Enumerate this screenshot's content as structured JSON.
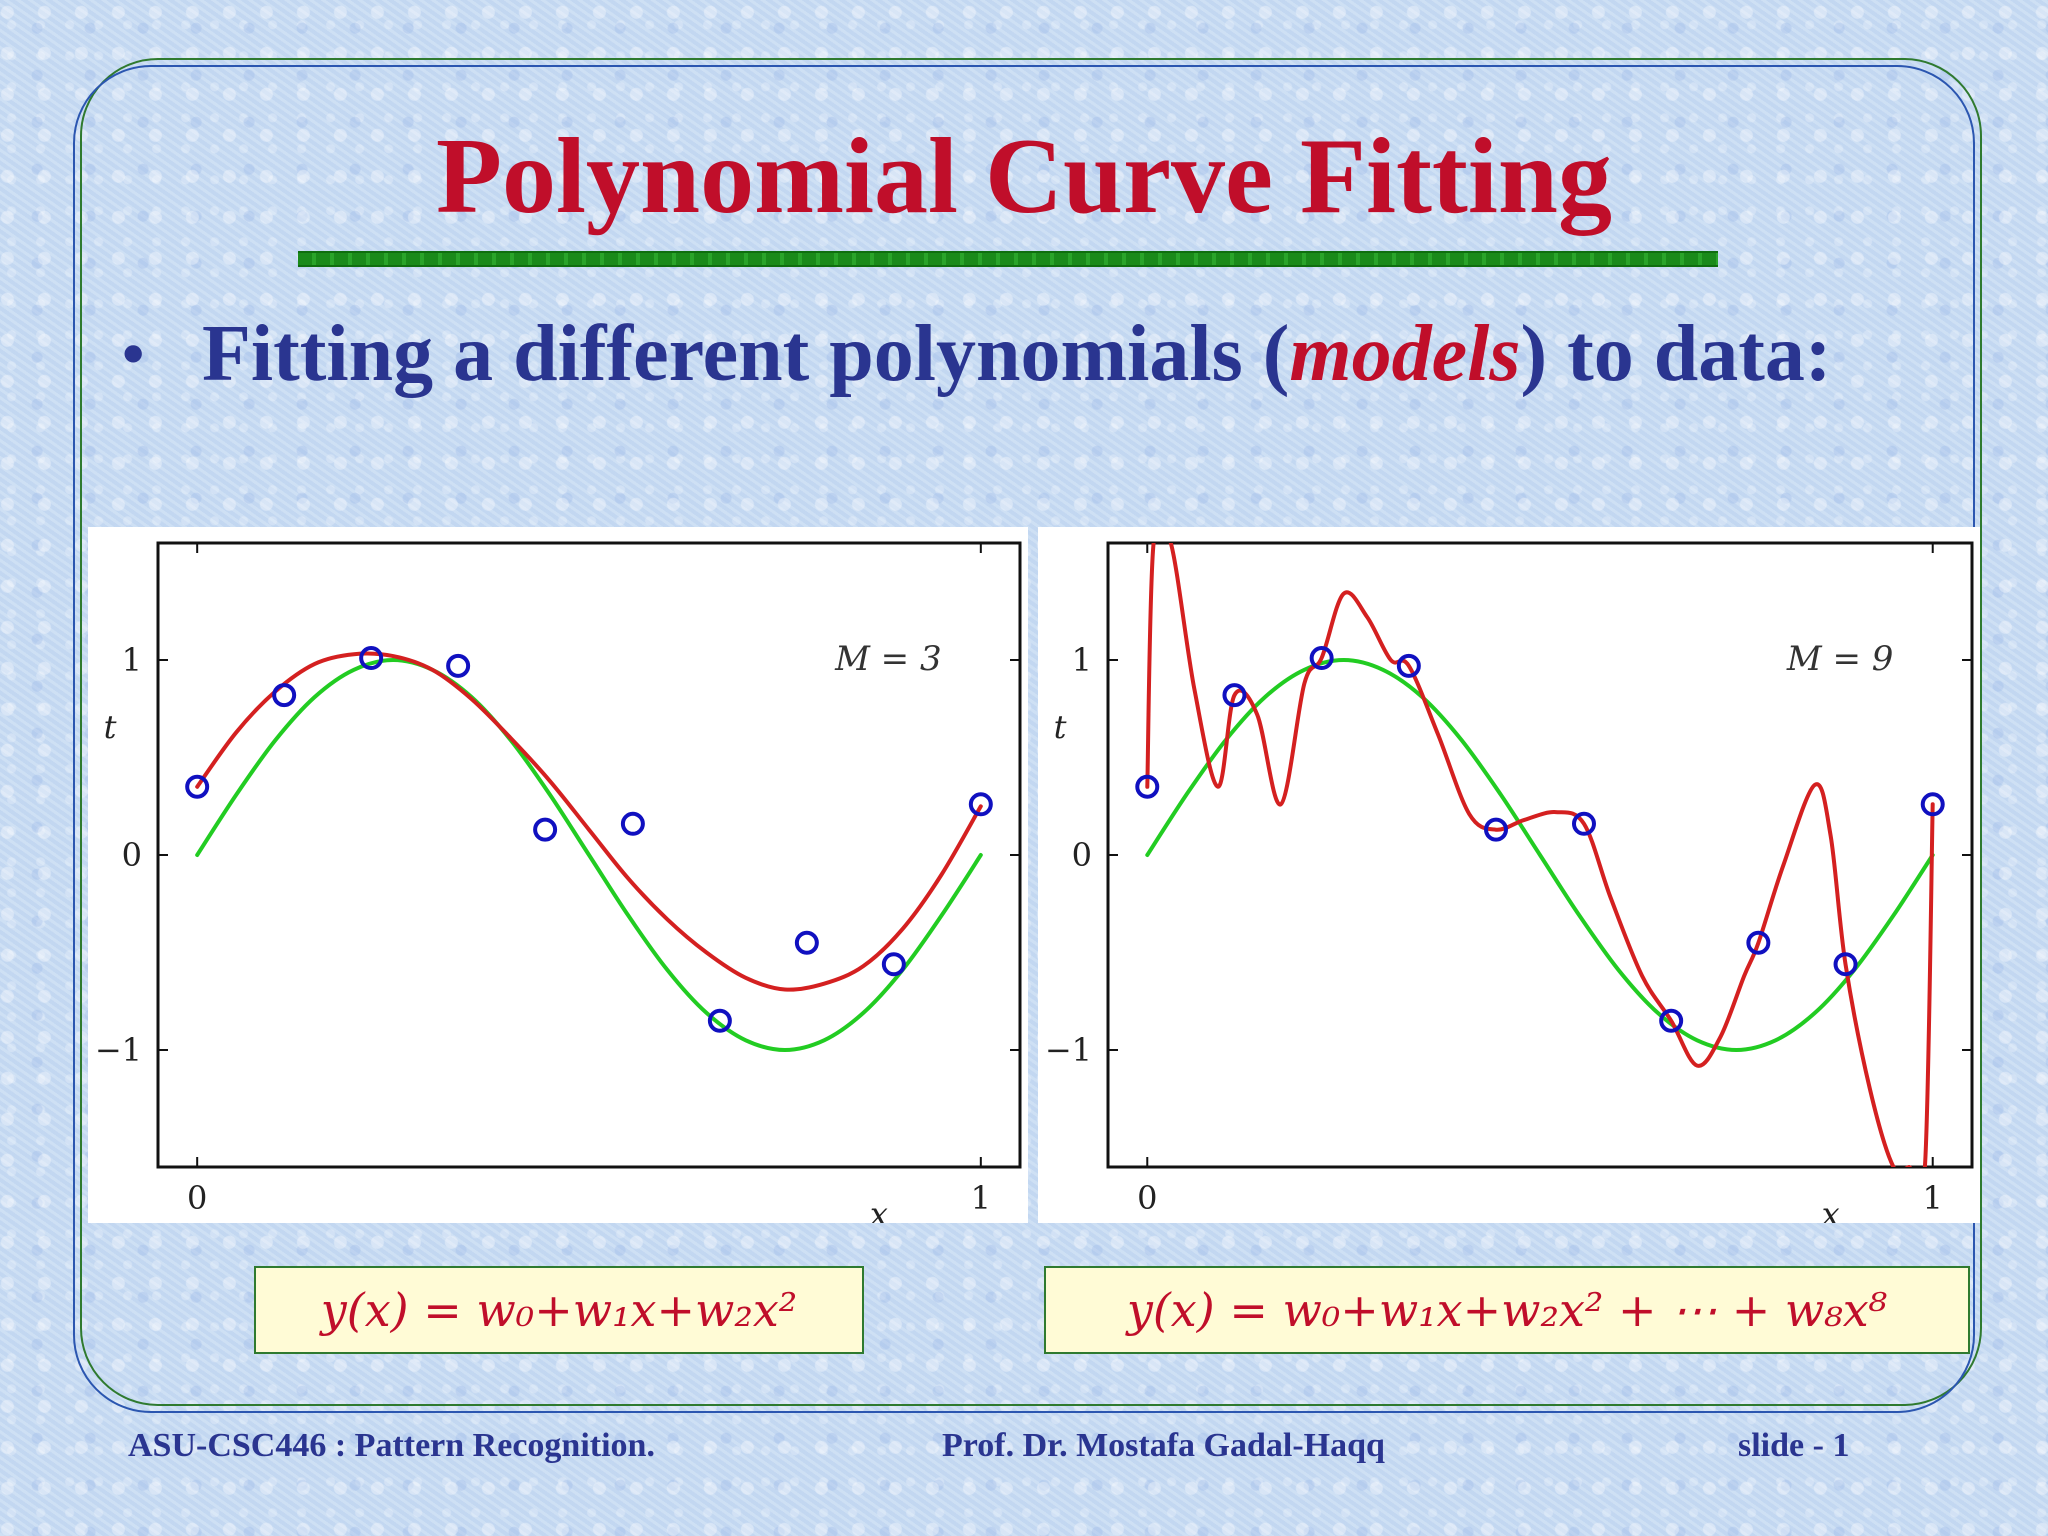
{
  "title": "Polynomial Curve Fitting",
  "bullet": {
    "text_before": "Fitting a different polynomials (",
    "emphasis": "models",
    "text_after": ") to data:"
  },
  "equations": {
    "left": "y(x) = w₀+w₁x+w₂x²",
    "right": "y(x) = w₀+w₁x+w₂x² + ⋯ + w₈x⁸"
  },
  "footer": {
    "course": "ASU-CSC446 :  Pattern Recognition.",
    "author": "Prof. Dr. Mostafa Gadal-Haqq",
    "slide": "slide - 1"
  },
  "colors": {
    "title": "#c00e2a",
    "bullet": "#2a3590",
    "fit_curve": "#d42020",
    "true_curve": "#22cc22",
    "data_points": "#1010c0"
  },
  "chart_data": [
    {
      "type": "line",
      "xlabel": "x",
      "ylabel": "t",
      "xlim": [
        -0.05,
        1.05
      ],
      "ylim": [
        -1.6,
        1.6
      ],
      "xticks": [
        0,
        1
      ],
      "yticks": [
        -1,
        0,
        1
      ],
      "annotation": "M = 3",
      "series": [
        {
          "role": "true",
          "color": "#22cc22",
          "x": [
            0,
            0.05,
            0.1,
            0.15,
            0.2,
            0.25,
            0.3,
            0.35,
            0.4,
            0.45,
            0.5,
            0.55,
            0.6,
            0.65,
            0.7,
            0.75,
            0.8,
            0.85,
            0.9,
            0.95,
            1.0
          ],
          "y": [
            0,
            0.31,
            0.59,
            0.81,
            0.95,
            1.0,
            0.95,
            0.81,
            0.59,
            0.31,
            0,
            -0.31,
            -0.59,
            -0.81,
            -0.95,
            -1.0,
            -0.95,
            -0.81,
            -0.59,
            -0.31,
            0
          ]
        },
        {
          "role": "fit",
          "color": "#d42020",
          "x": [
            0,
            0.05,
            0.1,
            0.15,
            0.2,
            0.25,
            0.3,
            0.35,
            0.4,
            0.45,
            0.5,
            0.55,
            0.6,
            0.65,
            0.7,
            0.75,
            0.8,
            0.85,
            0.9,
            0.95,
            1.0
          ],
          "y": [
            0.35,
            0.63,
            0.84,
            0.98,
            1.03,
            1.02,
            0.95,
            0.8,
            0.6,
            0.38,
            0.13,
            -0.12,
            -0.33,
            -0.5,
            -0.63,
            -0.69,
            -0.66,
            -0.57,
            -0.38,
            -0.1,
            0.25
          ]
        },
        {
          "role": "data",
          "color": "#1010c0",
          "x": [
            0,
            0.111,
            0.222,
            0.333,
            0.444,
            0.556,
            0.667,
            0.778,
            0.889,
            1.0
          ],
          "y": [
            0.35,
            0.82,
            1.01,
            0.97,
            0.13,
            0.16,
            -0.85,
            -0.45,
            -0.56,
            0.26
          ]
        }
      ]
    },
    {
      "type": "line",
      "xlabel": "x",
      "ylabel": "t",
      "xlim": [
        -0.05,
        1.05
      ],
      "ylim": [
        -1.6,
        1.6
      ],
      "xticks": [
        0,
        1
      ],
      "yticks": [
        -1,
        0,
        1
      ],
      "annotation": "M = 9",
      "series": [
        {
          "role": "true",
          "color": "#22cc22",
          "x": [
            0,
            0.05,
            0.1,
            0.15,
            0.2,
            0.25,
            0.3,
            0.35,
            0.4,
            0.45,
            0.5,
            0.55,
            0.6,
            0.65,
            0.7,
            0.75,
            0.8,
            0.85,
            0.9,
            0.95,
            1.0
          ],
          "y": [
            0,
            0.31,
            0.59,
            0.81,
            0.95,
            1.0,
            0.95,
            0.81,
            0.59,
            0.31,
            0,
            -0.31,
            -0.59,
            -0.81,
            -0.95,
            -1.0,
            -0.95,
            -0.81,
            -0.59,
            -0.31,
            0
          ]
        },
        {
          "role": "fit",
          "color": "#d42020",
          "x": [
            0,
            0.008,
            0.03,
            0.06,
            0.09,
            0.111,
            0.14,
            0.17,
            0.2,
            0.222,
            0.25,
            0.28,
            0.31,
            0.333,
            0.37,
            0.41,
            0.444,
            0.48,
            0.52,
            0.556,
            0.59,
            0.63,
            0.667,
            0.7,
            0.73,
            0.76,
            0.778,
            0.81,
            0.85,
            0.87,
            0.889,
            0.92,
            0.95,
            0.97,
            0.99,
            1.0
          ],
          "y": [
            0.35,
            1.6,
            1.6,
            0.85,
            0.35,
            0.82,
            0.72,
            0.26,
            0.88,
            1.01,
            1.34,
            1.22,
            1.0,
            0.97,
            0.62,
            0.21,
            0.13,
            0.18,
            0.22,
            0.16,
            -0.22,
            -0.62,
            -0.85,
            -1.08,
            -0.93,
            -0.62,
            -0.45,
            -0.05,
            0.36,
            0.1,
            -0.56,
            -1.2,
            -1.6,
            -1.6,
            -1.6,
            0.26
          ]
        },
        {
          "role": "data",
          "color": "#1010c0",
          "x": [
            0,
            0.111,
            0.222,
            0.333,
            0.444,
            0.556,
            0.667,
            0.778,
            0.889,
            1.0
          ],
          "y": [
            0.35,
            0.82,
            1.01,
            0.97,
            0.13,
            0.16,
            -0.85,
            -0.45,
            -0.56,
            0.26
          ]
        }
      ]
    }
  ]
}
